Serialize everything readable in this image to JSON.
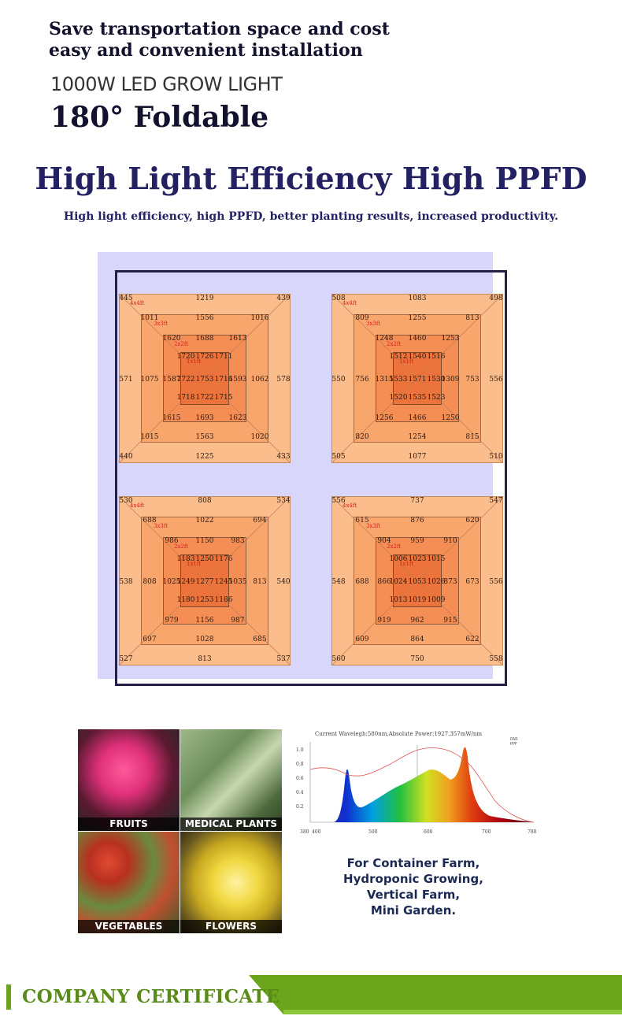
{
  "header": {
    "line1": "Save transportation space and cost",
    "line2": "easy and convenient installation",
    "model": "1000W LED GROW LIGHT",
    "fold": "180° Foldable"
  },
  "efficiency": {
    "title": "High Light Efficiency High PPFD",
    "subtitle": "High light efficiency, high PPFD, better planting results, increased productivity."
  },
  "ppfd_maps": [
    {
      "outer": [
        "445",
        "1219",
        "439",
        "571",
        "578",
        "440",
        "1225",
        "433"
      ],
      "ring1": [
        "1011",
        "1556",
        "1016",
        "1075",
        "1062",
        "1015",
        "1563",
        "1020"
      ],
      "ring2": [
        "1620",
        "1688",
        "1613",
        "1587",
        "1593",
        "1615",
        "1693",
        "1623"
      ],
      "core_top": [
        "1720",
        "1726",
        "1711"
      ],
      "core_mid": [
        "1722",
        "1753",
        "1716"
      ],
      "core_bot": [
        "1718",
        "1722",
        "1715"
      ]
    },
    {
      "outer": [
        "508",
        "1083",
        "498",
        "550",
        "556",
        "505",
        "1077",
        "510"
      ],
      "ring1": [
        "809",
        "1255",
        "813",
        "756",
        "753",
        "820",
        "1254",
        "815"
      ],
      "ring2": [
        "1248",
        "1460",
        "1253",
        "1315",
        "1309",
        "1256",
        "1466",
        "1250"
      ],
      "core_top": [
        "1512",
        "1540",
        "1516"
      ],
      "core_mid": [
        "1533",
        "1571",
        "1530"
      ],
      "core_bot": [
        "1520",
        "1535",
        "1523"
      ]
    },
    {
      "outer": [
        "530",
        "808",
        "534",
        "538",
        "540",
        "527",
        "813",
        "537"
      ],
      "ring1": [
        "688",
        "1022",
        "694",
        "808",
        "813",
        "697",
        "1028",
        "685"
      ],
      "ring2": [
        "986",
        "1150",
        "983",
        "1025",
        "1035",
        "979",
        "1156",
        "987"
      ],
      "core_top": [
        "1183",
        "1250",
        "1176"
      ],
      "core_mid": [
        "1249",
        "1277",
        "1245"
      ],
      "core_bot": [
        "1180",
        "1253",
        "1186"
      ]
    },
    {
      "outer": [
        "556",
        "737",
        "547",
        "548",
        "556",
        "560",
        "750",
        "558"
      ],
      "ring1": [
        "615",
        "876",
        "620",
        "688",
        "673",
        "609",
        "864",
        "622"
      ],
      "ring2": [
        "904",
        "959",
        "910",
        "866",
        "873",
        "919",
        "962",
        "915"
      ],
      "core_top": [
        "1006",
        "1023",
        "1015"
      ],
      "core_mid": [
        "1024",
        "1053",
        "1026"
      ],
      "core_bot": [
        "1013",
        "1019",
        "1009"
      ]
    }
  ],
  "ppfd_tags": [
    "4x4ft",
    "3x3ft",
    "2x2ft",
    "1x1ft"
  ],
  "applications": [
    "FRUITS",
    "MEDICAL PLANTS",
    "VEGETABLES",
    "FLOWERS"
  ],
  "spectrum": {
    "heading": "Current Wavelegh:580nm,Absolute Power:1927.357mW/nm",
    "yticks": [
      "1.0",
      "0.8",
      "0.6",
      "0.4",
      "0.2"
    ],
    "xticks": [
      "380",
      "400",
      "500",
      "600",
      "700",
      "780"
    ],
    "legend": [
      "PAR",
      "PPF"
    ]
  },
  "farm_text": "For Container Farm,\nHydroponic Growing,\nVertical Farm,\nMini Garden.",
  "certificate": "COMPANY CERTIFICATE",
  "colors": {
    "navy": "#242163",
    "peach": "#fbbd8c",
    "lavender": "#d9d6fb",
    "green": "#6aa51c"
  }
}
